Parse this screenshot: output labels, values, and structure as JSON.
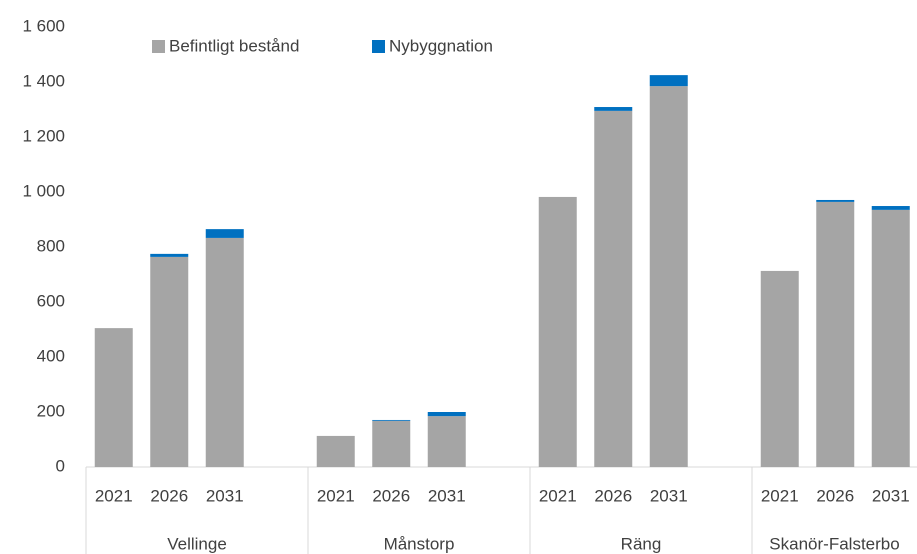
{
  "chart_data": {
    "type": "bar",
    "stacked": true,
    "groups": [
      {
        "name": "Vellinge",
        "categories": [
          "2021",
          "2026",
          "2031"
        ]
      },
      {
        "name": "Månstorp",
        "categories": [
          "2021",
          "2026",
          "2031"
        ]
      },
      {
        "name": "Räng",
        "categories": [
          "2021",
          "2026",
          "2031"
        ]
      },
      {
        "name": "Skanör-Falsterbo",
        "categories": [
          "2021",
          "2026",
          "2031"
        ]
      }
    ],
    "series": [
      {
        "name": "Befintligt bestånd",
        "color": "#a5a5a5",
        "values": [
          505,
          764,
          833,
          113,
          168,
          185,
          982,
          1295,
          1385,
          713,
          964,
          935
        ]
      },
      {
        "name": "Nybyggnation",
        "color": "#0070c0",
        "values": [
          0,
          11,
          32,
          0,
          3,
          15,
          0,
          14,
          40,
          0,
          7,
          14
        ]
      }
    ],
    "ylim": [
      0,
      1600
    ],
    "yticks": [
      0,
      200,
      400,
      600,
      800,
      {
        "value": 1000,
        "label": "1 000"
      },
      {
        "value": 1200,
        "label": "1 200"
      },
      {
        "value": 1400,
        "label": "1 400"
      },
      {
        "value": 1600,
        "label": "1 600"
      }
    ],
    "legend": "top"
  }
}
